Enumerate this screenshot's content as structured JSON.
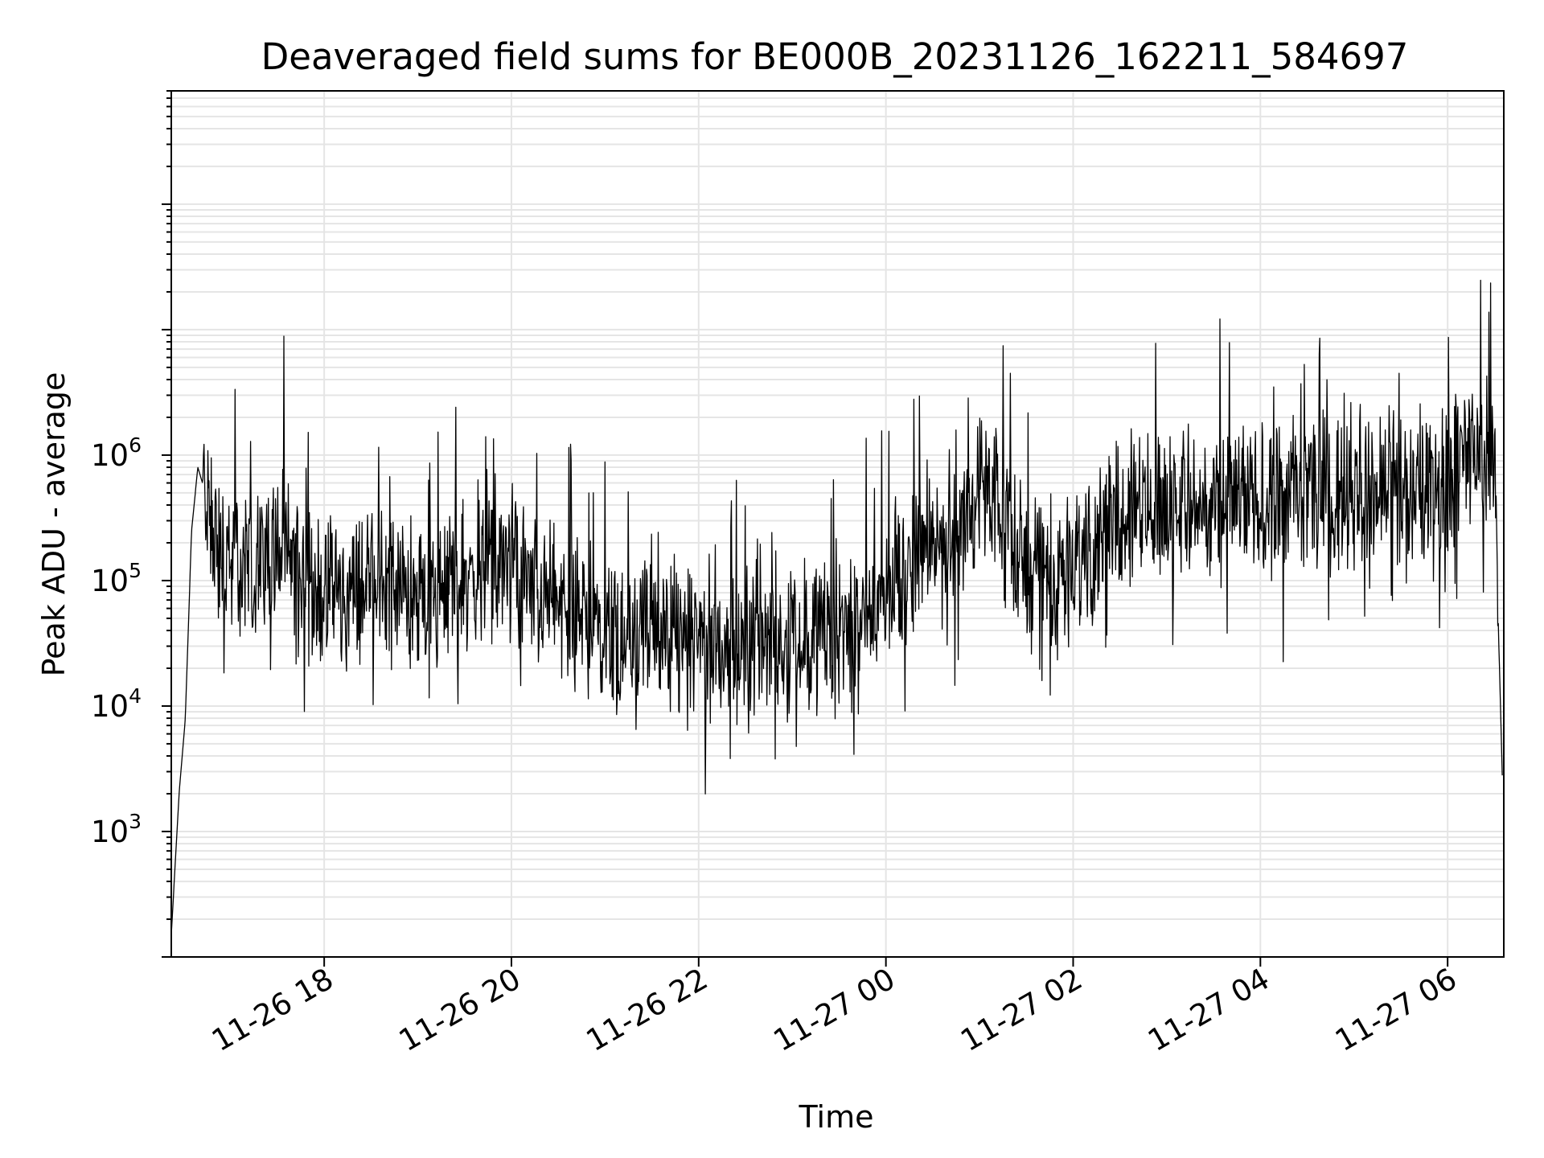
{
  "chart_data": {
    "type": "line",
    "title": "Deaveraged field sums for BE000B_20231126_162211_584697",
    "xlabel": "Time",
    "ylabel": "Peak ADU - average",
    "yscale": "log",
    "xlim": [
      "2023-11-26 16:22",
      "2023-11-27 06:36"
    ],
    "ylim": [
      100,
      800000000
    ],
    "x_ticks": [
      {
        "t": "2023-11-26 18:00",
        "label": "11-26 18"
      },
      {
        "t": "2023-11-26 20:00",
        "label": "11-26 20"
      },
      {
        "t": "2023-11-26 22:00",
        "label": "11-26 22"
      },
      {
        "t": "2023-11-27 00:00",
        "label": "11-27 00"
      },
      {
        "t": "2023-11-27 02:00",
        "label": "11-27 02"
      },
      {
        "t": "2023-11-27 04:00",
        "label": "11-27 04"
      },
      {
        "t": "2023-11-27 06:00",
        "label": "11-27 06"
      }
    ],
    "y_ticks": [
      {
        "value": 1000,
        "base": "10",
        "exp": "3"
      },
      {
        "value": 10000,
        "base": "10",
        "exp": "4"
      },
      {
        "value": 100000,
        "base": "10",
        "exp": "5"
      },
      {
        "value": 1000000,
        "base": "10",
        "exp": "6"
      }
    ],
    "grid": true,
    "line_color": "#000000",
    "grid_color": "#e5e5e5",
    "series": [
      {
        "x": [
          "2023-11-26 16:22",
          "2023-11-26 16:27",
          "2023-11-26 16:31",
          "2023-11-26 16:35",
          "2023-11-26 16:39",
          "2023-11-26 16:42",
          "2023-11-26 16:46",
          "2023-11-26 16:50",
          "2023-11-26 16:55",
          "2023-11-26 17:00",
          "2023-11-26 17:10",
          "2023-11-26 17:20",
          "2023-11-26 17:30",
          "2023-11-26 17:40",
          "2023-11-26 17:50",
          "2023-11-26 18:00",
          "2023-11-26 18:15",
          "2023-11-26 18:30",
          "2023-11-26 18:45",
          "2023-11-26 19:00",
          "2023-11-26 19:10",
          "2023-11-26 19:20",
          "2023-11-26 19:40",
          "2023-11-26 20:00",
          "2023-11-26 20:15",
          "2023-11-26 20:30",
          "2023-11-26 20:45",
          "2023-11-26 21:00",
          "2023-11-26 21:30",
          "2023-11-26 22:00",
          "2023-11-26 22:30",
          "2023-11-26 23:00",
          "2023-11-26 23:30",
          "2023-11-26 23:45",
          "2023-11-27 00:00",
          "2023-11-27 00:15",
          "2023-11-27 00:30",
          "2023-11-27 00:45",
          "2023-11-27 01:00",
          "2023-11-27 01:15",
          "2023-11-27 01:30",
          "2023-11-27 01:45",
          "2023-11-27 02:00",
          "2023-11-27 02:15",
          "2023-11-27 02:30",
          "2023-11-27 03:00",
          "2023-11-27 03:30",
          "2023-11-27 04:00",
          "2023-11-27 04:30",
          "2023-11-27 05:00",
          "2023-11-27 05:30",
          "2023-11-27 05:45",
          "2023-11-27 06:00",
          "2023-11-27 06:10",
          "2023-11-27 06:20",
          "2023-11-27 06:30",
          "2023-11-27 06:35"
        ],
        "y": [
          150,
          2000,
          8000,
          250000,
          800000,
          600000,
          400000,
          200000,
          140000,
          130000,
          120000,
          150000,
          200000,
          140000,
          90000,
          75000,
          70000,
          110000,
          90000,
          75000,
          60000,
          95000,
          110000,
          140000,
          80000,
          70000,
          50000,
          45000,
          35000,
          30000,
          32000,
          35000,
          38000,
          40000,
          90000,
          120000,
          180000,
          250000,
          500000,
          300000,
          150000,
          110000,
          120000,
          250000,
          350000,
          420000,
          380000,
          450000,
          500000,
          480000,
          520000,
          550000,
          600000,
          900000,
          1200000,
          800000,
          2800
        ]
      }
    ]
  }
}
